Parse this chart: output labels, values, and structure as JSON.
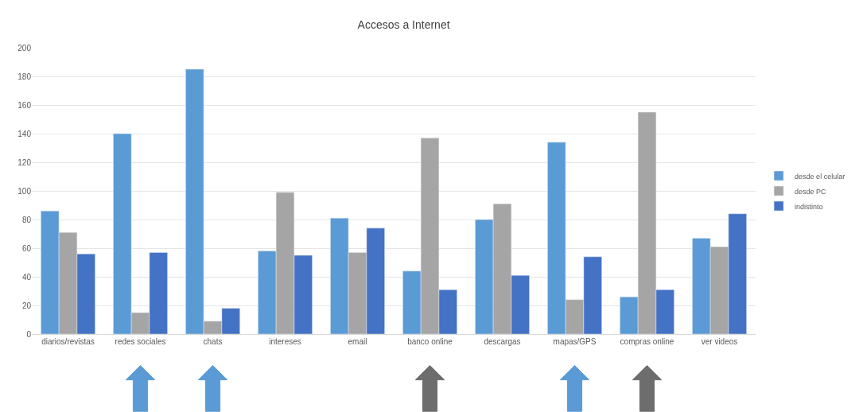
{
  "chart_data": {
    "type": "bar",
    "title": "Accesos a Internet",
    "categories": [
      "diarios/revistas",
      "redes sociales",
      "chats",
      "intereses",
      "email",
      "banco online",
      "descargas",
      "mapas/GPS",
      "compras online",
      "ver videos"
    ],
    "series": [
      {
        "name": "desde el celular",
        "color": "#5b9bd5",
        "values": [
          86,
          140,
          185,
          58,
          81,
          44,
          80,
          134,
          26,
          67
        ]
      },
      {
        "name": "desde PC",
        "color": "#a5a5a5",
        "values": [
          71,
          15,
          9,
          99,
          57,
          137,
          91,
          24,
          155,
          61
        ]
      },
      {
        "name": "indistinto",
        "color": "#4472c4",
        "values": [
          56,
          57,
          18,
          55,
          74,
          31,
          41,
          54,
          31,
          84
        ]
      }
    ],
    "ylim": [
      0,
      200
    ],
    "yticks": [
      0,
      20,
      40,
      60,
      80,
      100,
      120,
      140,
      160,
      180,
      200
    ],
    "grid": "y",
    "legend": "right"
  }
}
